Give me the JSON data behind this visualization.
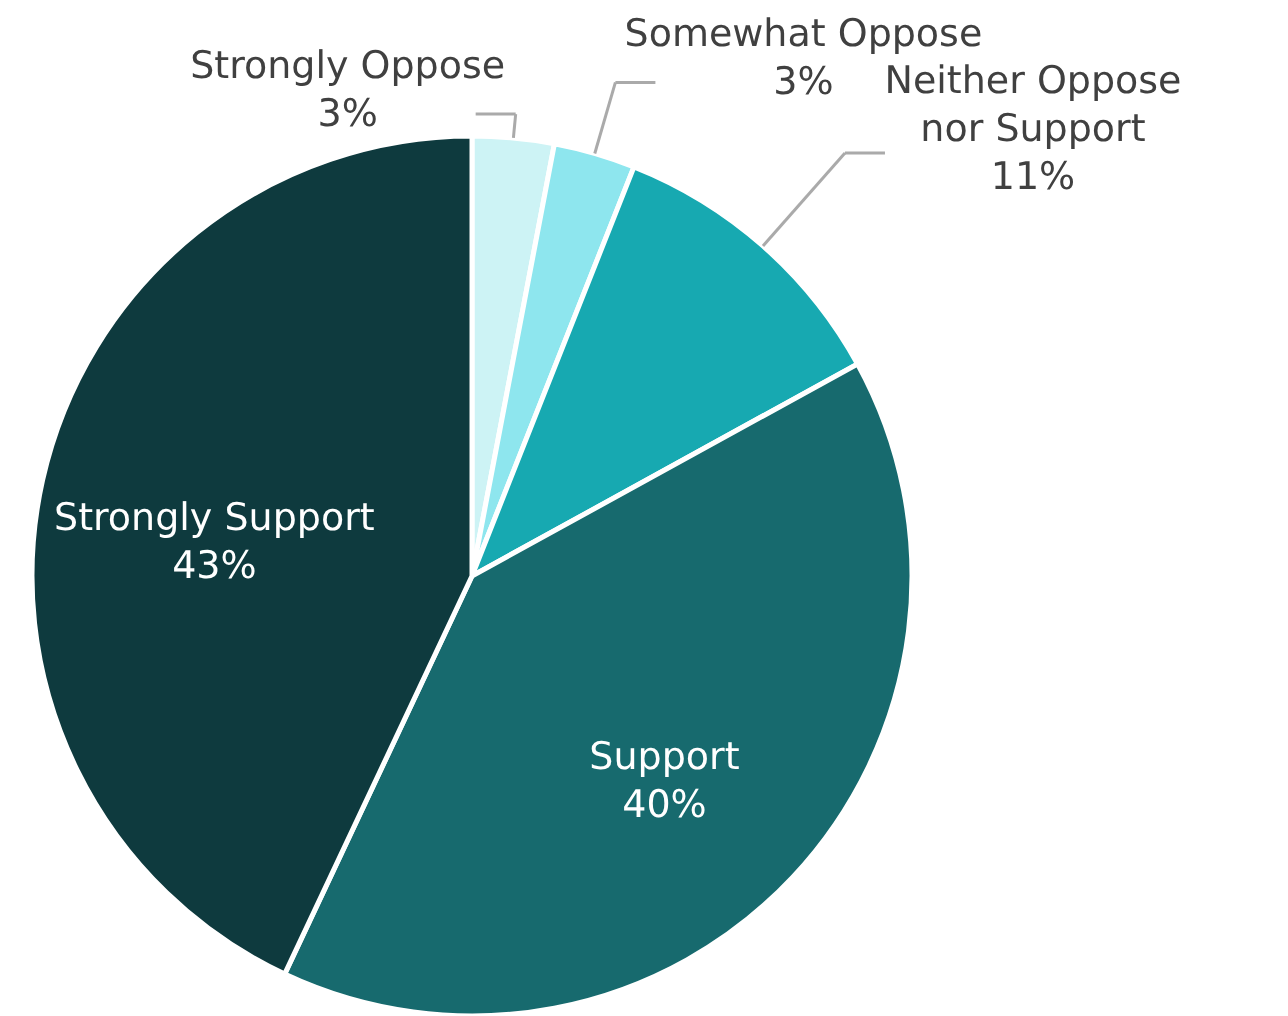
{
  "chart_data": {
    "type": "pie",
    "categories": [
      "Strongly Oppose",
      "Somewhat Oppose",
      "Neither Oppose nor Support",
      "Support",
      "Strongly Support"
    ],
    "values": [
      3,
      3,
      11,
      40,
      43
    ],
    "value_labels": [
      "3%",
      "3%",
      "11%",
      "40%",
      "43%"
    ],
    "colors": [
      "#cdf3f5",
      "#8ee6ee",
      "#17a9b1",
      "#176a6e",
      "#0e3a3e"
    ]
  }
}
